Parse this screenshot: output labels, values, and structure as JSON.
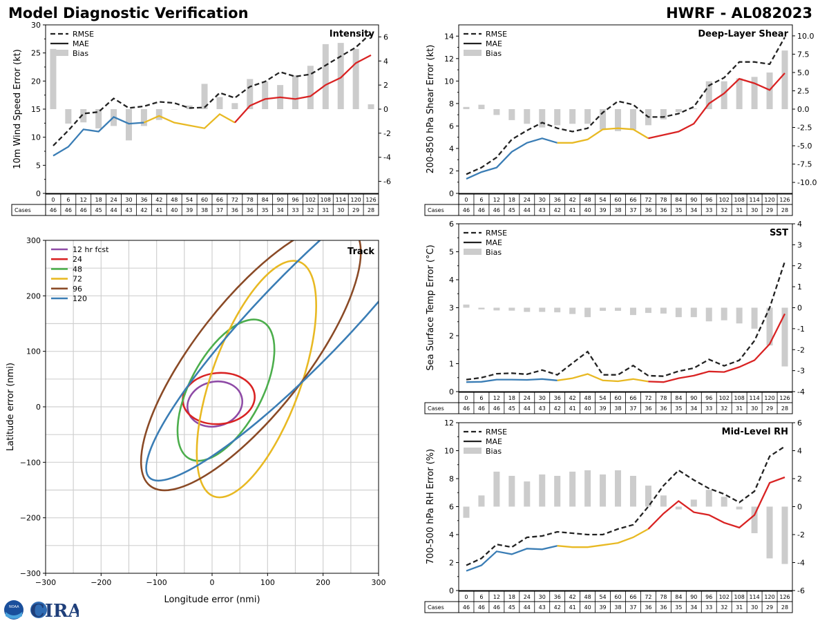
{
  "header": {
    "title": "Model Diagnostic Verification",
    "storm": "HWRF - AL082023"
  },
  "logo": {
    "text": "CIRA",
    "noaa_text": "NOAA"
  },
  "colors": {
    "rmse": "#222222",
    "mae_blue": "#3a7db5",
    "mae_yellow": "#e8b923",
    "mae_red": "#d92323",
    "bias": "#cccccc",
    "grid": "#d0d0d0",
    "track_12": "#8e4aa6",
    "track_24": "#d92323",
    "track_48": "#4cae4c",
    "track_72": "#e8b923",
    "track_96": "#8a4a26",
    "track_120": "#3a7db5"
  },
  "shared": {
    "lead_hours": [
      0,
      6,
      12,
      18,
      24,
      30,
      36,
      42,
      48,
      54,
      60,
      66,
      72,
      78,
      84,
      90,
      96,
      102,
      108,
      114,
      120,
      126
    ],
    "cases": [
      46,
      46,
      46,
      45,
      44,
      43,
      42,
      41,
      40,
      39,
      38,
      37,
      36,
      36,
      35,
      34,
      33,
      32,
      31,
      30,
      29,
      28
    ],
    "cases_label": "Cases",
    "legend_rmse": "RMSE",
    "legend_mae": "MAE",
    "legend_bias": "Bias",
    "mae_color_segments": [
      {
        "from": 0,
        "to": 6,
        "color": "#3a7db5"
      },
      {
        "from": 6,
        "to": 12,
        "color": "#e8b923"
      },
      {
        "from": 12,
        "to": 21,
        "color": "#d92323"
      }
    ]
  },
  "chart_data": [
    {
      "id": "intensity",
      "type": "line",
      "title": "Intensity",
      "ylabel": "10m Wind Speed Error (kt)",
      "ylim": [
        0,
        30
      ],
      "yticks": [
        0,
        5,
        10,
        15,
        20,
        25,
        30
      ],
      "y2lim": [
        -7,
        7
      ],
      "y2ticks": [
        -6,
        -4,
        -2,
        0,
        2,
        4,
        6
      ],
      "x": [
        0,
        6,
        12,
        18,
        24,
        30,
        36,
        42,
        48,
        54,
        60,
        66,
        72,
        78,
        84,
        90,
        96,
        102,
        108,
        114,
        120,
        126
      ],
      "rmse": [
        8.5,
        11.2,
        14.2,
        14.5,
        16.9,
        15.2,
        15.5,
        16.3,
        16.1,
        15.2,
        15.3,
        17.9,
        17.0,
        19.0,
        19.9,
        21.6,
        20.8,
        21.2,
        22.8,
        24.4,
        26.0,
        28.5
      ],
      "mae": [
        6.7,
        8.3,
        11.4,
        11.0,
        13.6,
        12.4,
        12.6,
        null,
        null,
        null,
        null,
        null,
        null,
        null,
        null,
        null,
        null,
        null,
        null,
        null,
        null,
        null
      ],
      "mae_seg2": [
        null,
        null,
        null,
        null,
        null,
        null,
        12.6,
        13.8,
        12.6,
        12.1,
        11.6,
        14.1,
        12.6,
        null,
        null,
        null,
        null,
        null,
        null,
        null,
        null,
        null
      ],
      "mae_seg3": [
        null,
        null,
        null,
        null,
        null,
        null,
        null,
        null,
        null,
        null,
        null,
        null,
        12.6,
        15.6,
        16.8,
        17.1,
        16.8,
        17.3,
        19.3,
        20.6,
        23.2,
        24.6
      ],
      "bias": [
        5.0,
        -1.2,
        -1.1,
        -1.6,
        -1.4,
        -2.6,
        -1.4,
        -0.9,
        0.0,
        0.3,
        2.1,
        1.0,
        0.5,
        2.5,
        2.3,
        2.0,
        2.8,
        3.6,
        5.4,
        5.5,
        5.0,
        0.4
      ]
    },
    {
      "id": "shear",
      "type": "line",
      "title": "Deep-Layer Shear",
      "ylabel": "200-850 hPa Shear Error (kt)",
      "ylim": [
        0,
        15
      ],
      "yticks": [
        0,
        2,
        4,
        6,
        8,
        10,
        12,
        14
      ],
      "y2lim": [
        -11.5,
        11.5
      ],
      "y2ticks": [
        -10.0,
        -7.5,
        -5.0,
        -2.5,
        0.0,
        2.5,
        5.0,
        7.5,
        10.0
      ],
      "x": [
        0,
        6,
        12,
        18,
        24,
        30,
        36,
        42,
        48,
        54,
        60,
        66,
        72,
        78,
        84,
        90,
        96,
        102,
        108,
        114,
        120,
        126
      ],
      "rmse": [
        1.7,
        2.3,
        3.2,
        4.8,
        5.6,
        6.3,
        5.8,
        5.5,
        5.8,
        7.2,
        8.2,
        7.9,
        6.8,
        6.8,
        7.1,
        7.7,
        9.6,
        10.3,
        11.7,
        11.7,
        11.5,
        13.9
      ],
      "mae": [
        1.3,
        1.9,
        2.3,
        3.7,
        4.5,
        4.9,
        4.5,
        null,
        null,
        null,
        null,
        null,
        null,
        null,
        null,
        null,
        null,
        null,
        null,
        null,
        null,
        null
      ],
      "mae_seg2": [
        null,
        null,
        null,
        null,
        null,
        null,
        4.5,
        4.5,
        4.8,
        5.7,
        5.8,
        5.7,
        4.9,
        null,
        null,
        null,
        null,
        null,
        null,
        null,
        null,
        null
      ],
      "mae_seg3": [
        null,
        null,
        null,
        null,
        null,
        null,
        null,
        null,
        null,
        null,
        null,
        null,
        4.9,
        5.2,
        5.5,
        6.2,
        8.0,
        8.9,
        10.2,
        9.8,
        9.2,
        10.7
      ],
      "bias": [
        0.3,
        0.6,
        -0.8,
        -1.5,
        -2.0,
        -2.5,
        -2.2,
        -2.0,
        -2.0,
        -2.8,
        -3.0,
        -2.8,
        -2.2,
        -1.4,
        -0.4,
        0.1,
        3.8,
        3.8,
        4.2,
        4.4,
        5.0,
        8.0
      ]
    },
    {
      "id": "sst",
      "type": "line",
      "title": "SST",
      "ylabel": "Sea Surface Temp Error (°C)",
      "ylim": [
        0,
        6
      ],
      "yticks": [
        0,
        1,
        2,
        3,
        4,
        5,
        6
      ],
      "y2lim": [
        -4,
        4
      ],
      "y2ticks": [
        -4,
        -3,
        -2,
        -1,
        0,
        1,
        2,
        3,
        4
      ],
      "x": [
        0,
        6,
        12,
        18,
        24,
        30,
        36,
        42,
        48,
        54,
        60,
        66,
        72,
        78,
        84,
        90,
        96,
        102,
        108,
        114,
        120,
        126
      ],
      "rmse": [
        0.43,
        0.5,
        0.64,
        0.66,
        0.62,
        0.77,
        0.6,
        1.02,
        1.43,
        0.6,
        0.6,
        0.93,
        0.57,
        0.55,
        0.73,
        0.84,
        1.15,
        0.92,
        1.12,
        1.82,
        3.0,
        4.65
      ],
      "mae": [
        0.34,
        0.35,
        0.43,
        0.43,
        0.42,
        0.45,
        0.4,
        null,
        null,
        null,
        null,
        null,
        null,
        null,
        null,
        null,
        null,
        null,
        null,
        null,
        null,
        null
      ],
      "mae_seg2": [
        null,
        null,
        null,
        null,
        null,
        null,
        0.4,
        0.48,
        0.63,
        0.4,
        0.37,
        0.45,
        0.36,
        null,
        null,
        null,
        null,
        null,
        null,
        null,
        null,
        null
      ],
      "mae_seg3": [
        null,
        null,
        null,
        null,
        null,
        null,
        null,
        null,
        null,
        null,
        null,
        null,
        0.36,
        0.34,
        0.48,
        0.57,
        0.72,
        0.7,
        0.88,
        1.12,
        1.7,
        2.78
      ],
      "bias": [
        0.15,
        -0.08,
        -0.13,
        -0.14,
        -0.2,
        -0.2,
        -0.22,
        -0.3,
        -0.45,
        -0.15,
        -0.15,
        -0.35,
        -0.25,
        -0.28,
        -0.45,
        -0.45,
        -0.65,
        -0.6,
        -0.75,
        -1.0,
        -1.8,
        -2.8
      ]
    },
    {
      "id": "rh",
      "type": "line",
      "title": "Mid-Level RH",
      "ylabel": "700-500 hPa RH Error (%)",
      "ylim": [
        0,
        12
      ],
      "yticks": [
        0,
        2,
        4,
        6,
        8,
        10,
        12
      ],
      "y2lim": [
        -6,
        6
      ],
      "y2ticks": [
        -6,
        -4,
        -2,
        0,
        2,
        4,
        6
      ],
      "x": [
        0,
        6,
        12,
        18,
        24,
        30,
        36,
        42,
        48,
        54,
        60,
        66,
        72,
        78,
        84,
        90,
        96,
        102,
        108,
        114,
        120,
        126
      ],
      "rmse": [
        1.8,
        2.3,
        3.3,
        3.1,
        3.8,
        3.9,
        4.2,
        4.1,
        4.0,
        4.0,
        4.4,
        4.7,
        6.0,
        7.5,
        8.6,
        7.9,
        7.3,
        6.9,
        6.3,
        7.1,
        9.6,
        10.3
      ],
      "mae": [
        1.4,
        1.8,
        2.8,
        2.6,
        3.0,
        2.95,
        3.2,
        null,
        null,
        null,
        null,
        null,
        null,
        null,
        null,
        null,
        null,
        null,
        null,
        null,
        null,
        null
      ],
      "mae_seg2": [
        null,
        null,
        null,
        null,
        null,
        null,
        3.2,
        3.1,
        3.1,
        3.25,
        3.4,
        3.8,
        4.4,
        null,
        null,
        null,
        null,
        null,
        null,
        null,
        null,
        null
      ],
      "mae_seg3": [
        null,
        null,
        null,
        null,
        null,
        null,
        null,
        null,
        null,
        null,
        null,
        null,
        4.4,
        5.5,
        6.4,
        5.6,
        5.4,
        4.85,
        4.5,
        5.4,
        7.7,
        8.1
      ],
      "bias": [
        -0.8,
        0.8,
        2.5,
        2.2,
        1.8,
        2.3,
        2.2,
        2.5,
        2.6,
        2.3,
        2.6,
        2.2,
        1.5,
        0.8,
        -0.2,
        0.5,
        1.2,
        0.7,
        -0.2,
        -1.9,
        -3.7,
        -4.1
      ]
    },
    {
      "id": "track",
      "type": "ellipse",
      "title": "Track",
      "xlabel": "Longitude error (nmi)",
      "ylabel": "Latitude error (nmi)",
      "xlim": [
        -300,
        300
      ],
      "ylim": [
        -300,
        300
      ],
      "ticks": [
        -300,
        -200,
        -100,
        0,
        100,
        200,
        300
      ],
      "grid_step": 50,
      "series": [
        {
          "name": "12 hr fcst",
          "color": "#8e4aa6",
          "cx": 5,
          "cy": 5,
          "a": 50,
          "b": 40,
          "angle": 15
        },
        {
          "name": "24",
          "color": "#d92323",
          "cx": 12,
          "cy": 15,
          "a": 65,
          "b": 46,
          "angle": 5
        },
        {
          "name": "48",
          "color": "#4cae4c",
          "cx": 25,
          "cy": 30,
          "a": 140,
          "b": 65,
          "angle": 62
        },
        {
          "name": "72",
          "color": "#e8b923",
          "cx": 80,
          "cy": 50,
          "a": 225,
          "b": 80,
          "angle": 70
        },
        {
          "name": "96",
          "color": "#8a4a26",
          "cx": 70,
          "cy": 90,
          "a": 295,
          "b": 100,
          "angle": 52
        },
        {
          "name": "120",
          "color": "#3a7db5",
          "cx": 165,
          "cy": 160,
          "a": 400,
          "b": 80,
          "angle": 46
        }
      ]
    }
  ]
}
